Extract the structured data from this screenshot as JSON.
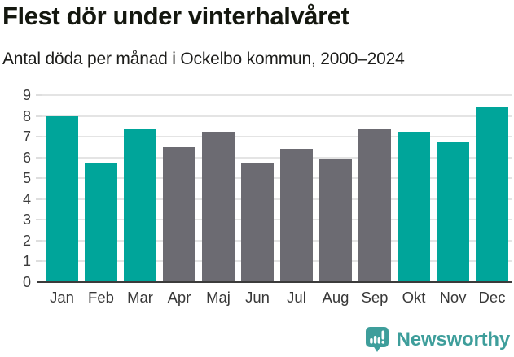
{
  "header": {
    "title": "Flest dör under vinterhalvåret",
    "subtitle": "Antal döda per månad i Ockelbo kommun, 2000–2024"
  },
  "chart_data": {
    "type": "bar",
    "title": "Flest dör under vinterhalvåret",
    "subtitle": "Antal döda per månad i Ockelbo kommun, 2000–2024",
    "categories": [
      "Jan",
      "Feb",
      "Mar",
      "Apr",
      "Maj",
      "Jun",
      "Jul",
      "Aug",
      "Sep",
      "Okt",
      "Nov",
      "Dec"
    ],
    "values": [
      8.0,
      5.7,
      7.35,
      6.5,
      7.25,
      5.7,
      6.4,
      5.9,
      7.35,
      7.25,
      6.75,
      8.4
    ],
    "highlighted": [
      true,
      true,
      true,
      false,
      false,
      false,
      false,
      false,
      false,
      true,
      true,
      true
    ],
    "xlabel": "",
    "ylabel": "",
    "ylim": [
      0,
      9
    ],
    "yticks": [
      0,
      1,
      2,
      3,
      4,
      5,
      6,
      7,
      8,
      9
    ],
    "grid": true,
    "legend": "none",
    "colors": {
      "highlight_bar": "#00a59a",
      "regular_bar": "#6c6b72",
      "axis_line": "#3b3b3b",
      "gridline": "#e4e4e4",
      "tick_label": "#3c3c3c"
    }
  },
  "branding": {
    "logo_text": "Newsworthy",
    "logo_color": "#3e9e9b",
    "logo_icon": "newsworthy-chart-bubble-icon"
  }
}
